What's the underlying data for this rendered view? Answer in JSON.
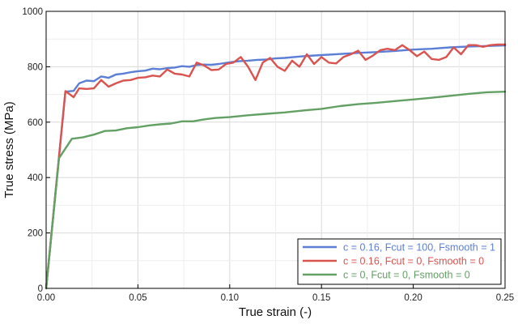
{
  "chart_data": {
    "type": "line",
    "title": "",
    "xlabel": "True strain (-)",
    "ylabel": "True stress (MPa)",
    "xlim": [
      0,
      0.25
    ],
    "ylim": [
      0,
      1000
    ],
    "xticks": [
      0.0,
      0.05,
      0.1,
      0.15,
      0.2,
      0.25
    ],
    "xtick_labels": [
      "0.00",
      "0.05",
      "0.10",
      "0.15",
      "0.20",
      "0.25"
    ],
    "yticks": [
      0,
      200,
      400,
      600,
      800,
      1000
    ],
    "ytick_labels": [
      "0",
      "200",
      "400",
      "600",
      "800",
      "1000"
    ],
    "grid": true,
    "legend_position": "bottom-right",
    "series": [
      {
        "name": "c = 0.16, Fcut = 100, Fsmooth = 1",
        "color": "#5b7fd6",
        "x": [
          0,
          0.0105,
          0.015,
          0.018,
          0.022,
          0.026,
          0.03,
          0.034,
          0.038,
          0.042,
          0.046,
          0.05,
          0.054,
          0.058,
          0.062,
          0.066,
          0.07,
          0.074,
          0.078,
          0.082,
          0.086,
          0.09,
          0.094,
          0.1,
          0.105,
          0.11,
          0.115,
          0.12,
          0.125,
          0.13,
          0.14,
          0.15,
          0.16,
          0.17,
          0.18,
          0.19,
          0.2,
          0.21,
          0.22,
          0.23,
          0.24,
          0.25
        ],
        "y": [
          0,
          710,
          713,
          740,
          750,
          748,
          765,
          760,
          772,
          775,
          780,
          784,
          786,
          793,
          791,
          795,
          797,
          802,
          800,
          806,
          808,
          807,
          810,
          816,
          820,
          822,
          825,
          826,
          830,
          832,
          838,
          842,
          846,
          850,
          853,
          857,
          862,
          865,
          870,
          873,
          875,
          877
        ]
      },
      {
        "name": "c = 0.16, Fcut = 0, Fsmooth = 0",
        "color": "#d9534f",
        "x": [
          0,
          0.0105,
          0.015,
          0.018,
          0.022,
          0.026,
          0.03,
          0.034,
          0.038,
          0.042,
          0.046,
          0.05,
          0.054,
          0.058,
          0.062,
          0.066,
          0.07,
          0.074,
          0.078,
          0.082,
          0.086,
          0.09,
          0.094,
          0.098,
          0.102,
          0.106,
          0.11,
          0.114,
          0.118,
          0.122,
          0.126,
          0.13,
          0.134,
          0.138,
          0.142,
          0.146,
          0.15,
          0.154,
          0.158,
          0.162,
          0.166,
          0.17,
          0.174,
          0.178,
          0.182,
          0.186,
          0.19,
          0.194,
          0.198,
          0.202,
          0.206,
          0.21,
          0.214,
          0.218,
          0.222,
          0.226,
          0.23,
          0.234,
          0.238,
          0.242,
          0.246,
          0.25
        ],
        "y": [
          0,
          712,
          690,
          722,
          720,
          722,
          752,
          728,
          740,
          750,
          752,
          760,
          762,
          768,
          765,
          790,
          775,
          772,
          765,
          815,
          805,
          788,
          790,
          810,
          815,
          835,
          800,
          752,
          815,
          832,
          800,
          785,
          822,
          800,
          845,
          810,
          835,
          815,
          812,
          835,
          845,
          858,
          825,
          840,
          860,
          865,
          860,
          878,
          860,
          838,
          855,
          828,
          825,
          835,
          870,
          845,
          878,
          878,
          872,
          878,
          880,
          880
        ]
      },
      {
        "name": "c = 0, Fcut = 0, Fsmooth = 0",
        "color": "#63a063",
        "x": [
          0,
          0.007,
          0.014,
          0.02,
          0.026,
          0.032,
          0.038,
          0.044,
          0.05,
          0.056,
          0.062,
          0.068,
          0.074,
          0.08,
          0.086,
          0.092,
          0.1,
          0.11,
          0.12,
          0.13,
          0.14,
          0.15,
          0.16,
          0.17,
          0.18,
          0.19,
          0.2,
          0.21,
          0.22,
          0.23,
          0.24,
          0.25
        ],
        "y": [
          0,
          470,
          540,
          545,
          555,
          568,
          570,
          578,
          582,
          588,
          592,
          595,
          603,
          603,
          610,
          615,
          618,
          625,
          630,
          635,
          642,
          648,
          658,
          665,
          670,
          676,
          682,
          688,
          695,
          702,
          708,
          710
        ]
      }
    ]
  }
}
